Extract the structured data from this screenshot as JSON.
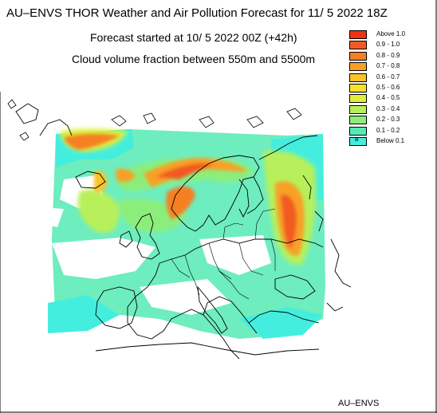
{
  "header": {
    "title": "AU–ENVS THOR Weather and Air Pollution Forecast for 11/ 5 2022  18Z",
    "forecast_started": "Forecast started at 10/ 5 2022  00Z (+42h)",
    "variable": "Cloud volume fraction between 550m and 5500m"
  },
  "legend": {
    "items": [
      {
        "label": "Above   1.0",
        "color": "#ee3311"
      },
      {
        "label": "0.9  -  1.0",
        "color": "#f25a22"
      },
      {
        "label": "0.8  -  0.9",
        "color": "#f58022"
      },
      {
        "label": "0.7  -  0.8",
        "color": "#f8a026"
      },
      {
        "label": "0.6  -  0.7",
        "color": "#fac328"
      },
      {
        "label": "0.5  -  0.6",
        "color": "#fbe22a"
      },
      {
        "label": "0.4  -  0.5",
        "color": "#dff03a"
      },
      {
        "label": "0.3  -  0.4",
        "color": "#b7f05a"
      },
      {
        "label": "0.2  -  0.3",
        "color": "#8cee7a"
      },
      {
        "label": "0.1  -  0.2",
        "color": "#55eab4"
      },
      {
        "label": "Below   0.1",
        "color": "#44eede",
        "marker": "B"
      }
    ]
  },
  "footer": {
    "brand": "AU–ENVS"
  }
}
